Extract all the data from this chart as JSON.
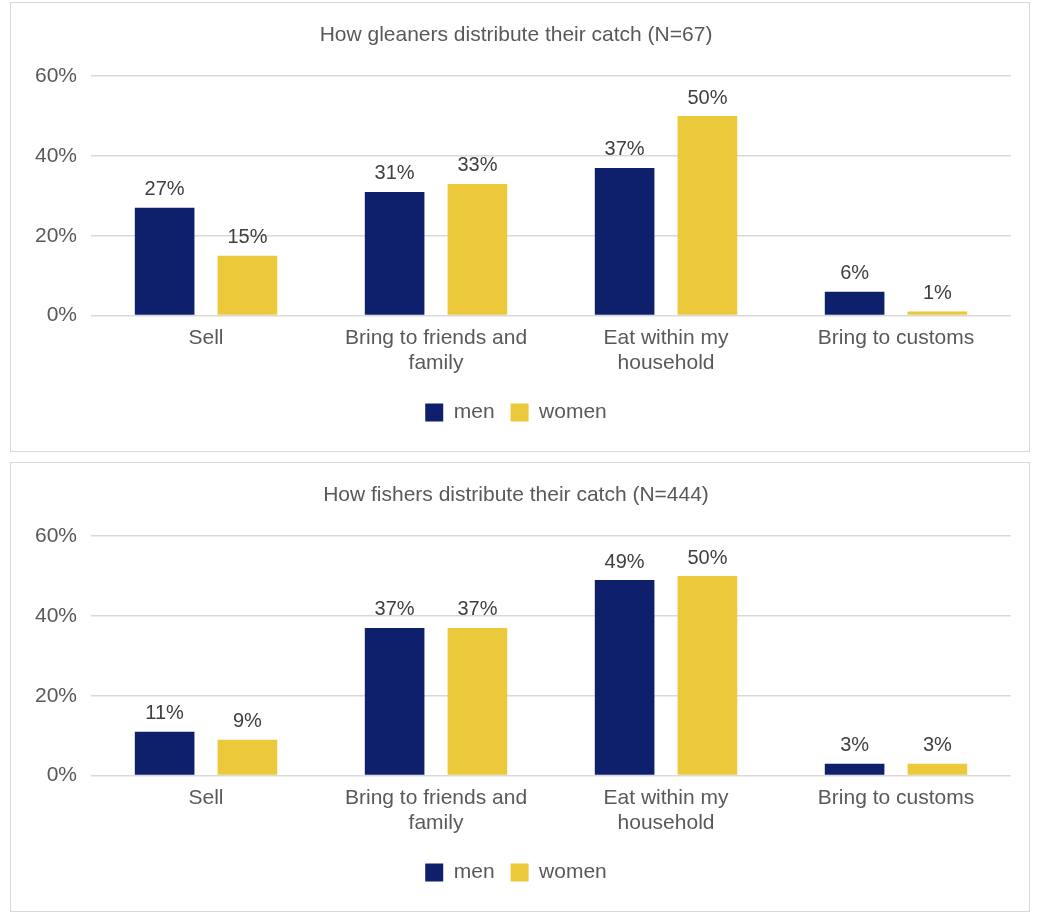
{
  "chart_data": [
    {
      "type": "bar",
      "title": "How gleaners distribute their catch (N=67)",
      "categories": [
        "Sell",
        "Bring to friends and family",
        "Eat within my household",
        "Bring to customs"
      ],
      "series": [
        {
          "name": "men",
          "color": "#0e1f6c",
          "values": [
            27,
            31,
            37,
            6
          ],
          "value_labels": [
            "27%",
            "31%",
            "37%",
            "6%"
          ]
        },
        {
          "name": "women",
          "color": "#ecc83b",
          "values": [
            15,
            33,
            50,
            1
          ],
          "value_labels": [
            "15%",
            "33%",
            "50%",
            "1%"
          ]
        }
      ],
      "ylim": [
        0,
        60
      ],
      "yticks": [
        {
          "value": 0,
          "label": "0%"
        },
        {
          "value": 20,
          "label": "20%"
        },
        {
          "value": 40,
          "label": "40%"
        },
        {
          "value": 60,
          "label": "60%"
        }
      ],
      "grid": "y",
      "legend": "bottom"
    },
    {
      "type": "bar",
      "title": "How fishers distribute their catch (N=444)",
      "categories": [
        "Sell",
        "Bring to friends and family",
        "Eat within my household",
        "Bring to customs"
      ],
      "series": [
        {
          "name": "men",
          "color": "#0e1f6c",
          "values": [
            11,
            37,
            49,
            3
          ],
          "value_labels": [
            "11%",
            "37%",
            "49%",
            "3%"
          ]
        },
        {
          "name": "women",
          "color": "#ecc83b",
          "values": [
            9,
            37,
            50,
            3
          ],
          "value_labels": [
            "9%",
            "37%",
            "50%",
            "3%"
          ]
        }
      ],
      "ylim": [
        0,
        60
      ],
      "yticks": [
        {
          "value": 0,
          "label": "0%"
        },
        {
          "value": 20,
          "label": "20%"
        },
        {
          "value": 40,
          "label": "40%"
        },
        {
          "value": 60,
          "label": "60%"
        }
      ],
      "grid": "y",
      "legend": "bottom"
    }
  ]
}
